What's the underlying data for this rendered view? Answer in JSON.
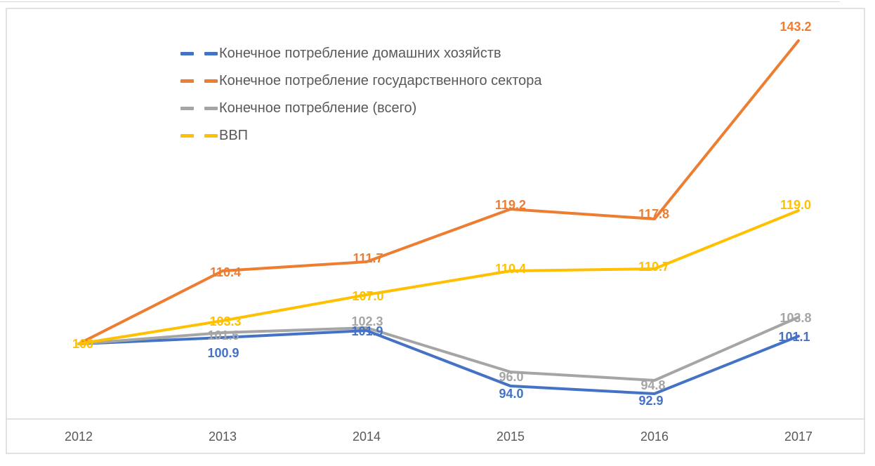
{
  "chart_data": {
    "type": "line",
    "title": "",
    "categories": [
      "2012",
      "2013",
      "2014",
      "2015",
      "2016",
      "2017"
    ],
    "start_label": "100",
    "series": [
      {
        "name": "Конечное потребление домашних хозяйств",
        "color": "#4472C4",
        "values": [
          100,
          100.9,
          101.9,
          94.0,
          92.9,
          101.1
        ],
        "data_labels": [
          "100.9",
          "101.9",
          "94.0",
          "92.9",
          "101.1"
        ]
      },
      {
        "name": "Конечное потребление государственного сектора",
        "color": "#ED7D31",
        "values": [
          100,
          110.4,
          111.7,
          119.2,
          117.8,
          143.2
        ],
        "data_labels": [
          "110.4",
          "111.7",
          "119.2",
          "117.8",
          "143.2"
        ]
      },
      {
        "name": "Конечное потребление (всего)",
        "color": "#A5A5A5",
        "values": [
          100,
          101.6,
          102.3,
          96.0,
          94.8,
          103.8
        ],
        "data_labels": [
          "101.6",
          "102.3",
          "96.0",
          "94.8",
          "103.8"
        ]
      },
      {
        "name": "ВВП",
        "color": "#FFC000",
        "values": [
          100,
          103.3,
          107.0,
          110.4,
          110.7,
          119.0
        ],
        "data_labels": [
          "103.3",
          "107.0",
          "110.4",
          "110.7",
          "119.0"
        ]
      }
    ],
    "legend_position": "top-left-inside",
    "grid": false,
    "ylim": [
      88,
      148
    ],
    "colors": {
      "axis_text": "#595959",
      "frame_border": "#d9d9d9",
      "axis_line": "#d9d9d9"
    }
  }
}
